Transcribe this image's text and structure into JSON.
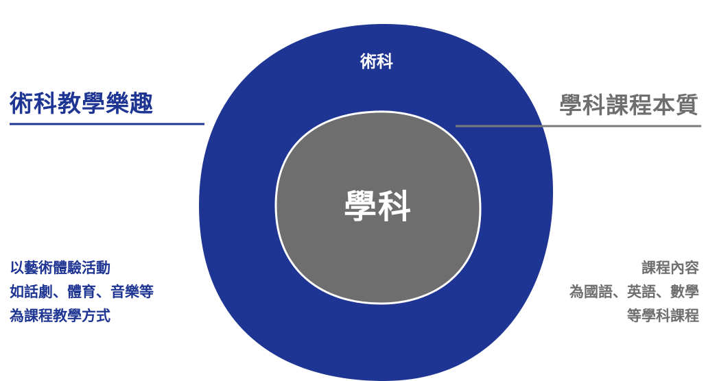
{
  "colors": {
    "blue": "#1f3593",
    "gray": "#6e6e6e",
    "white": "#ffffff",
    "rule_gray": "#7a7a7a"
  },
  "outer": {
    "label": "術科"
  },
  "inner": {
    "label": "學科"
  },
  "left": {
    "title": "術科教學樂趣",
    "desc_lines": [
      "以藝術體驗活動",
      "如話劇、體育、音樂等",
      "為課程教學方式"
    ]
  },
  "right": {
    "title": "學科課程本質",
    "desc_lines": [
      "課程內容",
      "為國語、英語、數學",
      "等學科課程"
    ]
  }
}
